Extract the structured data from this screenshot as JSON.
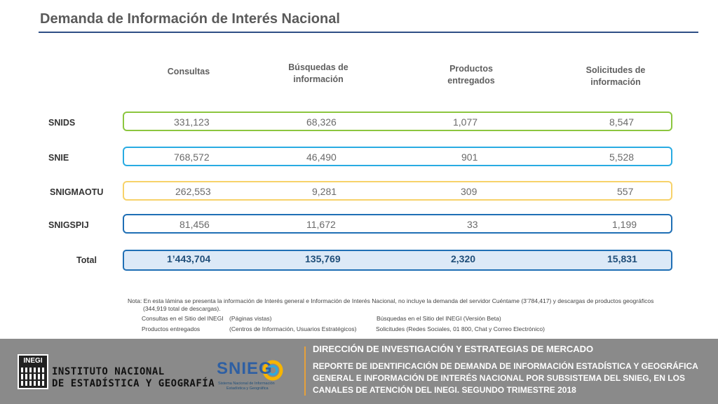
{
  "title": "Demanda de Información de Interés Nacional",
  "columns": [
    "Consultas",
    "Búsquedas de información",
    "Productos entregados",
    "Solicitudes de información"
  ],
  "rows": [
    {
      "label": "SNIDS",
      "border": "#8cc63f",
      "values": [
        "331,123",
        "68,326",
        "1,077",
        "8,547"
      ]
    },
    {
      "label": "SNIE",
      "border": "#29abe2",
      "values": [
        "768,572",
        "46,490",
        "901",
        "5,528"
      ]
    },
    {
      "label": "SNIGMAOTU",
      "border": "#f7d26a",
      "values": [
        "262,553",
        "9,281",
        "309",
        "557"
      ]
    },
    {
      "label": "SNIGSPIJ",
      "border": "#1f6fb5",
      "values": [
        "81,456",
        "11,672",
        "33",
        "1,199"
      ]
    }
  ],
  "total": {
    "label": "Total",
    "border": "#1f6fb5",
    "fill": "#dce9f7",
    "values": [
      "1’443,704",
      "135,769",
      "2,320",
      "15,831"
    ]
  },
  "note": {
    "line1": "Nota: En esta lámina se presenta la información de Interés general e Información de Interés Nacional, no incluye la demanda del servidor Cuéntame (3’784,417) y descargas de productos geográficos",
    "line2": "(344,919 total de descargas).",
    "consultas_label": "Consultas en el Sitio del INEGI",
    "consultas_desc": "(Páginas vistas)",
    "busquedas": "Búsquedas en el Sitio del INEGI (Versión Beta)",
    "productos_label": "Productos entregados",
    "productos_desc": "(Centros de Información, Usuarios Estratégicos)",
    "solicitudes": "Solicitudes (Redes Sociales, 01 800, Chat y Correo Electrónico)"
  },
  "footer": {
    "logo_mark": "INEGI",
    "institute_line1": "INSTITUTO NACIONAL",
    "institute_line2": "DE ESTADÍSTICA Y GEOGRAFÍA",
    "snieg_mark": "SNIEG",
    "snieg_line1": "Sistema Nacional de Información",
    "snieg_line2": "Estadística y Geográfica",
    "direction": "DIRECCIÓN DE INVESTIGACIÓN Y ESTRATEGIAS DE MERCADO",
    "report": "REPORTE DE IDENTIFICACIÓN DE DEMANDA DE INFORMACIÓN ESTADÍSTICA Y GEOGRÁFICA GENERAL E INFORMACIÓN DE INTERÉS NACIONAL POR SUBSISTEMA DEL SNIEG, EN LOS CANALES DE ATENCIÓN DEL INEGI. SEGUNDO TRIMESTRE 2018"
  }
}
